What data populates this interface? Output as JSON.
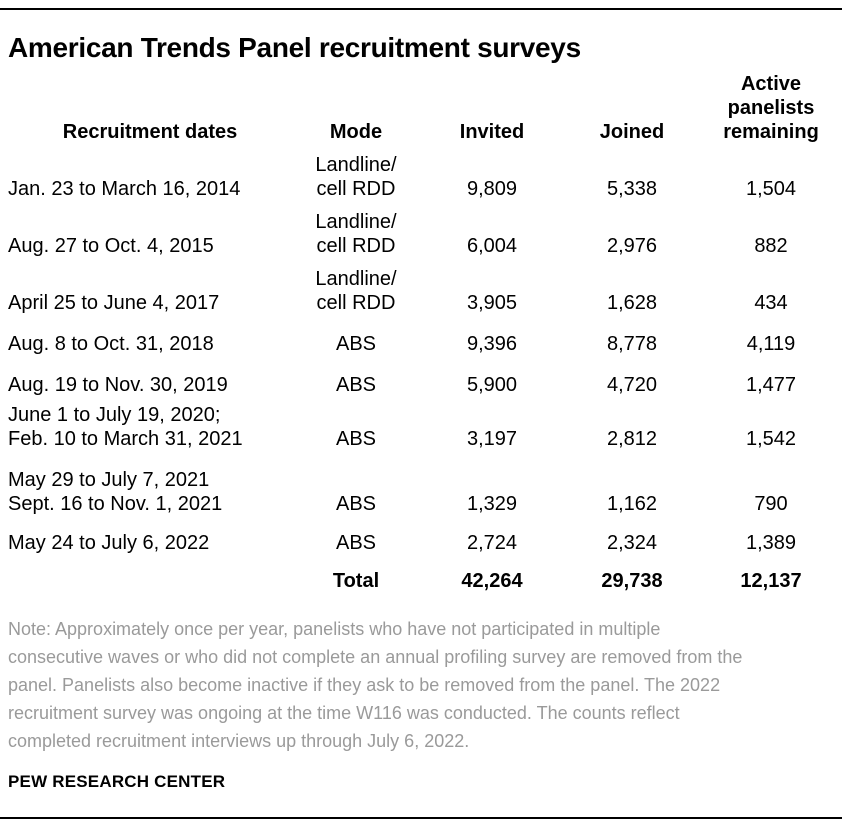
{
  "title": "American Trends Panel recruitment surveys",
  "colors": {
    "text": "#000000",
    "note_gray": "#9a9a9a",
    "rule": "#000000",
    "background": "#ffffff"
  },
  "table": {
    "headers": [
      "Recruitment dates",
      "Mode",
      "Invited",
      "Joined",
      "Active\npanelists\nremaining"
    ],
    "rows": [
      {
        "dates": "Jan. 23 to March 16, 2014",
        "mode": "Landline/\ncell RDD",
        "invited": "9,809",
        "joined": "5,338",
        "remaining": "1,504"
      },
      {
        "dates": "Aug. 27 to Oct. 4, 2015",
        "mode": "Landline/\ncell RDD",
        "invited": "6,004",
        "joined": "2,976",
        "remaining": "882"
      },
      {
        "dates": "April 25 to June 4, 2017",
        "mode": "Landline/\ncell RDD",
        "invited": "3,905",
        "joined": "1,628",
        "remaining": "434"
      },
      {
        "dates": "Aug. 8 to Oct. 31, 2018",
        "mode": "ABS",
        "invited": "9,396",
        "joined": "8,778",
        "remaining": "4,119"
      },
      {
        "dates": "Aug. 19 to Nov. 30, 2019",
        "mode": "ABS",
        "invited": "5,900",
        "joined": "4,720",
        "remaining": "1,477"
      },
      {
        "dates": "June 1 to July 19, 2020;\nFeb. 10 to March 31, 2021",
        "mode": "ABS",
        "invited": "3,197",
        "joined": "2,812",
        "remaining": "1,542"
      },
      {
        "dates": "May 29 to July 7, 2021\nSept. 16 to Nov. 1, 2021",
        "mode": "ABS",
        "invited": "1,329",
        "joined": "1,162",
        "remaining": "790"
      },
      {
        "dates": "May 24 to July 6, 2022",
        "mode": "ABS",
        "invited": "2,724",
        "joined": "2,324",
        "remaining": "1,389"
      }
    ],
    "total": {
      "label": "Total",
      "invited": "42,264",
      "joined": "29,738",
      "remaining": "12,137"
    }
  },
  "note": "Note: Approximately once per year, panelists who have not participated in multiple\nconsecutive waves or who did not complete an annual profiling survey are removed from the\npanel. Panelists also become inactive if they ask to be removed from the panel.  The 2022\nrecruitment survey was ongoing at the time W116 was conducted. The counts reflect\ncompleted recruitment interviews up through July 6, 2022.",
  "source": "PEW RESEARCH CENTER",
  "chart_data": {
    "type": "table",
    "title": "American Trends Panel recruitment surveys",
    "columns": [
      "Recruitment dates",
      "Mode",
      "Invited",
      "Joined",
      "Active panelists remaining"
    ],
    "rows": [
      [
        "Jan. 23 to March 16, 2014",
        "Landline/cell RDD",
        9809,
        5338,
        1504
      ],
      [
        "Aug. 27 to Oct. 4, 2015",
        "Landline/cell RDD",
        6004,
        2976,
        882
      ],
      [
        "April 25 to June 4, 2017",
        "Landline/cell RDD",
        3905,
        1628,
        434
      ],
      [
        "Aug. 8 to Oct. 31, 2018",
        "ABS",
        9396,
        8778,
        4119
      ],
      [
        "Aug. 19 to Nov. 30, 2019",
        "ABS",
        5900,
        4720,
        1477
      ],
      [
        "June 1 to July 19, 2020; Feb. 10 to March 31, 2021",
        "ABS",
        3197,
        2812,
        1542
      ],
      [
        "May 29 to July 7, 2021 Sept. 16 to Nov. 1, 2021",
        "ABS",
        1329,
        1162,
        790
      ],
      [
        "May 24 to July 6, 2022",
        "ABS",
        2724,
        2324,
        1389
      ]
    ],
    "totals": [
      "",
      "Total",
      42264,
      29738,
      12137
    ]
  }
}
